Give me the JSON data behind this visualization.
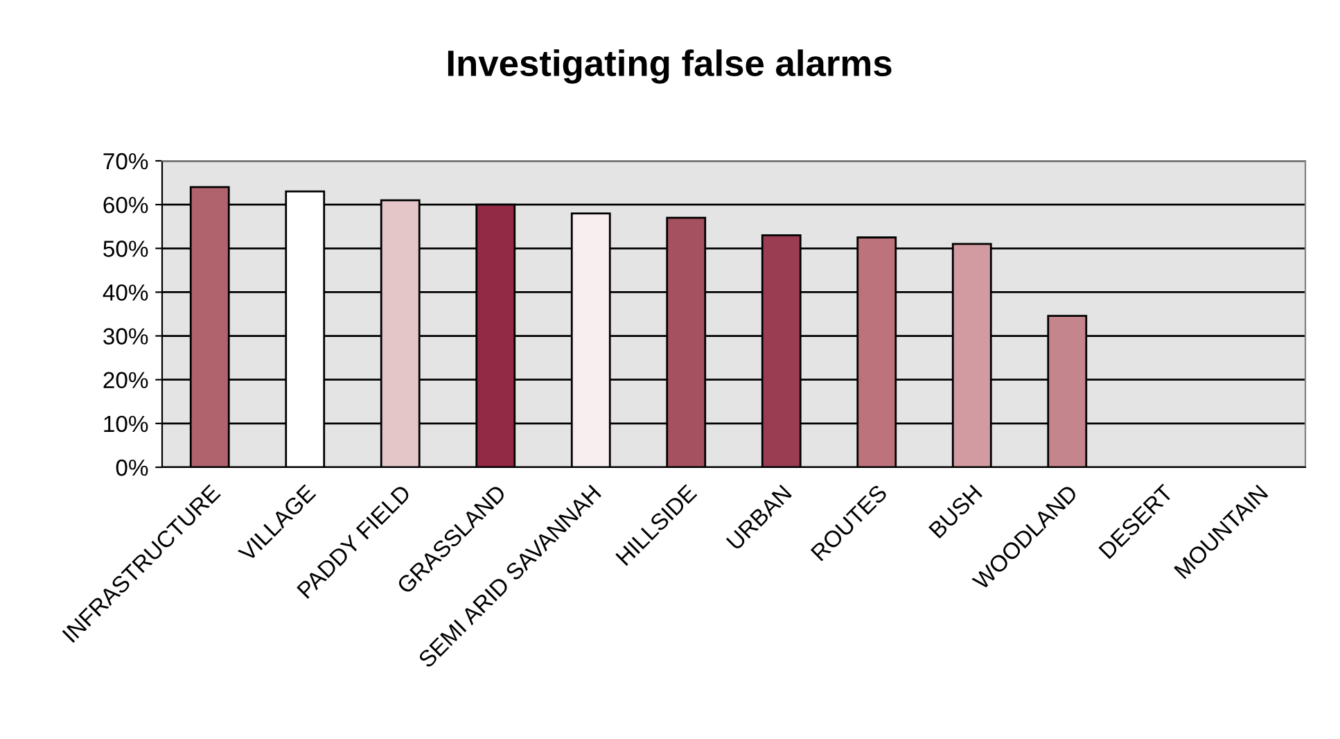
{
  "chart_data": {
    "type": "bar",
    "title": "Investigating false alarms",
    "categories": [
      "INFRASTRUCTURE",
      "VILLAGE",
      "PADDY FIELD",
      "GRASSLAND",
      "SEMI ARID SAVANNAH",
      "HILLSIDE",
      "URBAN",
      "ROUTES",
      "BUSH",
      "WOODLAND",
      "DESERT",
      "MOUNTAIN"
    ],
    "values": [
      64,
      63,
      61,
      60,
      58,
      57,
      53,
      52.5,
      51,
      34.6,
      0,
      0
    ],
    "colors": [
      "#b0636d",
      "#ffffff",
      "#e4c6c9",
      "#922a45",
      "#f8eeef",
      "#a5515f",
      "#9a3d53",
      "#bc737c",
      "#d19ba1",
      "#c5858c",
      "#c5858c",
      "#c5858c"
    ],
    "ylim": [
      0,
      70
    ],
    "yticks": [
      {
        "value": 0,
        "label": "0%"
      },
      {
        "value": 10,
        "label": "10%"
      },
      {
        "value": 20,
        "label": "20%"
      },
      {
        "value": 30,
        "label": "30%"
      },
      {
        "value": 40,
        "label": "40%"
      },
      {
        "value": 50,
        "label": "50%"
      },
      {
        "value": 60,
        "label": "60%"
      },
      {
        "value": 70,
        "label": "70%"
      }
    ],
    "grid": "y"
  }
}
